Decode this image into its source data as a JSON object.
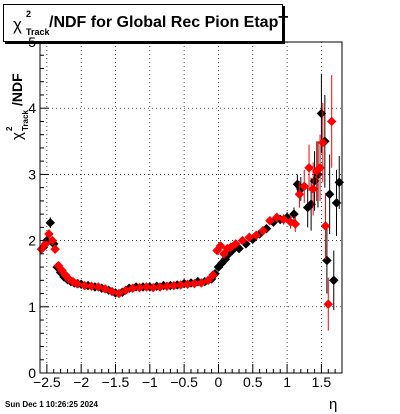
{
  "title": {
    "symbol": "χ",
    "superscript": "2",
    "subscript": "Track",
    "text": "/NDF for Global Rec Pion EtapT"
  },
  "footer": {
    "timestamp": "Sun Dec  1 10:26:25 2024"
  },
  "colors": {
    "series_black": "#000000",
    "series_red": "#ff0000",
    "grid": "#000000",
    "background": "#ffffff"
  },
  "chart_data": {
    "type": "scatter",
    "title": "χ²_Track/NDF for Global Rec Pion EtapT",
    "xlabel": "η",
    "ylabel": "χ²_Track/NDF",
    "xlim": [
      -2.6,
      1.8
    ],
    "ylim": [
      0,
      5
    ],
    "grid": true,
    "x_ticks": [
      -2.5,
      -2,
      -1.5,
      -1,
      -0.5,
      0,
      0.5,
      1,
      1.5
    ],
    "x_tick_labels": [
      "−2.5",
      "−2",
      "−1.5",
      "−1",
      "−0.5",
      "0",
      "0.5",
      "1",
      "1.5"
    ],
    "y_ticks": [
      0,
      1,
      2,
      3,
      4,
      5
    ],
    "y_tick_labels": [
      "0",
      "1",
      "2",
      "3",
      "4",
      "5"
    ],
    "series": [
      {
        "color": "#000000",
        "points": [
          {
            "x": -2.55,
            "y": 1.9,
            "err": 0.05
          },
          {
            "x": -2.5,
            "y": 2.0,
            "err": 0.06
          },
          {
            "x": -2.45,
            "y": 2.27,
            "err": 0.08
          },
          {
            "x": -2.4,
            "y": 1.95,
            "err": 0.05
          },
          {
            "x": -2.35,
            "y": 1.6,
            "err": 0.03
          },
          {
            "x": -2.3,
            "y": 1.52,
            "err": 0.03
          },
          {
            "x": -2.25,
            "y": 1.45,
            "err": 0.02
          },
          {
            "x": -2.2,
            "y": 1.41,
            "err": 0.02
          },
          {
            "x": -2.15,
            "y": 1.38,
            "err": 0.02
          },
          {
            "x": -2.1,
            "y": 1.36,
            "err": 0.02
          },
          {
            "x": -2.05,
            "y": 1.35,
            "err": 0.02
          },
          {
            "x": -2.0,
            "y": 1.34,
            "err": 0.02
          },
          {
            "x": -1.9,
            "y": 1.32,
            "err": 0.02
          },
          {
            "x": -1.8,
            "y": 1.3,
            "err": 0.02
          },
          {
            "x": -1.7,
            "y": 1.28,
            "err": 0.02
          },
          {
            "x": -1.6,
            "y": 1.25,
            "err": 0.02
          },
          {
            "x": -1.5,
            "y": 1.21,
            "err": 0.02
          },
          {
            "x": -1.4,
            "y": 1.22,
            "err": 0.02
          },
          {
            "x": -1.3,
            "y": 1.28,
            "err": 0.02
          },
          {
            "x": -1.2,
            "y": 1.3,
            "err": 0.02
          },
          {
            "x": -1.1,
            "y": 1.3,
            "err": 0.02
          },
          {
            "x": -1.0,
            "y": 1.3,
            "err": 0.02
          },
          {
            "x": -0.9,
            "y": 1.31,
            "err": 0.02
          },
          {
            "x": -0.8,
            "y": 1.32,
            "err": 0.02
          },
          {
            "x": -0.7,
            "y": 1.32,
            "err": 0.02
          },
          {
            "x": -0.6,
            "y": 1.33,
            "err": 0.02
          },
          {
            "x": -0.5,
            "y": 1.35,
            "err": 0.02
          },
          {
            "x": -0.4,
            "y": 1.36,
            "err": 0.02
          },
          {
            "x": -0.3,
            "y": 1.38,
            "err": 0.02
          },
          {
            "x": -0.2,
            "y": 1.38,
            "err": 0.03
          },
          {
            "x": -0.1,
            "y": 1.42,
            "err": 0.03
          },
          {
            "x": -0.05,
            "y": 1.5,
            "err": 0.03
          },
          {
            "x": 0.0,
            "y": 1.6,
            "err": 0.04
          },
          {
            "x": 0.05,
            "y": 1.66,
            "err": 0.04
          },
          {
            "x": 0.1,
            "y": 1.72,
            "err": 0.04
          },
          {
            "x": 0.15,
            "y": 1.8,
            "err": 0.04
          },
          {
            "x": 0.2,
            "y": 1.85,
            "err": 0.04
          },
          {
            "x": 0.3,
            "y": 1.88,
            "err": 0.04
          },
          {
            "x": 0.4,
            "y": 1.95,
            "err": 0.05
          },
          {
            "x": 0.5,
            "y": 2.02,
            "err": 0.05
          },
          {
            "x": 0.6,
            "y": 2.1,
            "err": 0.05
          },
          {
            "x": 0.7,
            "y": 2.18,
            "err": 0.06
          },
          {
            "x": 0.8,
            "y": 2.28,
            "err": 0.06
          },
          {
            "x": 0.9,
            "y": 2.32,
            "err": 0.07
          },
          {
            "x": 1.0,
            "y": 2.35,
            "err": 0.08
          },
          {
            "x": 1.1,
            "y": 2.4,
            "err": 0.1
          },
          {
            "x": 1.15,
            "y": 2.85,
            "err": 0.15
          },
          {
            "x": 1.2,
            "y": 2.78,
            "err": 0.18
          },
          {
            "x": 1.3,
            "y": 2.5,
            "err": 0.3
          },
          {
            "x": 1.35,
            "y": 2.55,
            "err": 0.4
          },
          {
            "x": 1.4,
            "y": 2.9,
            "err": 0.45
          },
          {
            "x": 1.45,
            "y": 3.0,
            "err": 0.5
          },
          {
            "x": 1.5,
            "y": 3.92,
            "err": 0.6
          },
          {
            "x": 1.55,
            "y": 3.5,
            "err": 0.7
          },
          {
            "x": 1.58,
            "y": 1.7,
            "err": 0.5
          },
          {
            "x": 1.62,
            "y": 2.7,
            "err": 0.6
          },
          {
            "x": 1.68,
            "y": 1.4,
            "err": 0.45
          },
          {
            "x": 1.72,
            "y": 2.57,
            "err": 0.5
          },
          {
            "x": 1.76,
            "y": 2.88,
            "err": 0.4
          }
        ]
      },
      {
        "color": "#ff0000",
        "points": [
          {
            "x": -2.58,
            "y": 1.87,
            "err": 0.05
          },
          {
            "x": -2.52,
            "y": 1.95,
            "err": 0.06
          },
          {
            "x": -2.47,
            "y": 2.1,
            "err": 0.07
          },
          {
            "x": -2.42,
            "y": 2.0,
            "err": 0.05
          },
          {
            "x": -2.38,
            "y": 1.87,
            "err": 0.05
          },
          {
            "x": -2.33,
            "y": 1.62,
            "err": 0.03
          },
          {
            "x": -2.28,
            "y": 1.55,
            "err": 0.03
          },
          {
            "x": -2.23,
            "y": 1.48,
            "err": 0.02
          },
          {
            "x": -2.18,
            "y": 1.42,
            "err": 0.02
          },
          {
            "x": -2.12,
            "y": 1.38,
            "err": 0.02
          },
          {
            "x": -2.06,
            "y": 1.35,
            "err": 0.02
          },
          {
            "x": -1.95,
            "y": 1.32,
            "err": 0.02
          },
          {
            "x": -1.85,
            "y": 1.31,
            "err": 0.02
          },
          {
            "x": -1.75,
            "y": 1.3,
            "err": 0.02
          },
          {
            "x": -1.65,
            "y": 1.27,
            "err": 0.02
          },
          {
            "x": -1.55,
            "y": 1.23,
            "err": 0.02
          },
          {
            "x": -1.45,
            "y": 1.2,
            "err": 0.02
          },
          {
            "x": -1.35,
            "y": 1.25,
            "err": 0.02
          },
          {
            "x": -1.25,
            "y": 1.28,
            "err": 0.02
          },
          {
            "x": -1.15,
            "y": 1.29,
            "err": 0.02
          },
          {
            "x": -1.05,
            "y": 1.3,
            "err": 0.02
          },
          {
            "x": -0.95,
            "y": 1.29,
            "err": 0.02
          },
          {
            "x": -0.85,
            "y": 1.3,
            "err": 0.02
          },
          {
            "x": -0.75,
            "y": 1.31,
            "err": 0.02
          },
          {
            "x": -0.65,
            "y": 1.32,
            "err": 0.02
          },
          {
            "x": -0.55,
            "y": 1.33,
            "err": 0.02
          },
          {
            "x": -0.45,
            "y": 1.34,
            "err": 0.02
          },
          {
            "x": -0.35,
            "y": 1.35,
            "err": 0.02
          },
          {
            "x": -0.25,
            "y": 1.36,
            "err": 0.02
          },
          {
            "x": -0.15,
            "y": 1.4,
            "err": 0.03
          },
          {
            "x": -0.08,
            "y": 1.48,
            "err": 0.03
          },
          {
            "x": -0.02,
            "y": 1.85,
            "err": 0.04
          },
          {
            "x": 0.03,
            "y": 1.92,
            "err": 0.04
          },
          {
            "x": 0.08,
            "y": 1.8,
            "err": 0.04
          },
          {
            "x": 0.13,
            "y": 1.88,
            "err": 0.04
          },
          {
            "x": 0.18,
            "y": 1.9,
            "err": 0.04
          },
          {
            "x": 0.25,
            "y": 1.95,
            "err": 0.04
          },
          {
            "x": 0.35,
            "y": 2.0,
            "err": 0.05
          },
          {
            "x": 0.45,
            "y": 2.05,
            "err": 0.05
          },
          {
            "x": 0.55,
            "y": 2.08,
            "err": 0.05
          },
          {
            "x": 0.65,
            "y": 2.15,
            "err": 0.06
          },
          {
            "x": 0.75,
            "y": 2.3,
            "err": 0.06
          },
          {
            "x": 0.85,
            "y": 2.35,
            "err": 0.07
          },
          {
            "x": 0.95,
            "y": 2.32,
            "err": 0.08
          },
          {
            "x": 1.05,
            "y": 2.28,
            "err": 0.1
          },
          {
            "x": 1.12,
            "y": 2.25,
            "err": 0.12
          },
          {
            "x": 1.18,
            "y": 2.7,
            "err": 0.2
          },
          {
            "x": 1.25,
            "y": 2.82,
            "err": 0.25
          },
          {
            "x": 1.32,
            "y": 3.1,
            "err": 0.35
          },
          {
            "x": 1.38,
            "y": 2.78,
            "err": 0.4
          },
          {
            "x": 1.43,
            "y": 3.05,
            "err": 0.45
          },
          {
            "x": 1.48,
            "y": 3.1,
            "err": 0.5
          },
          {
            "x": 1.52,
            "y": 3.48,
            "err": 0.6
          },
          {
            "x": 1.56,
            "y": 2.22,
            "err": 0.5
          },
          {
            "x": 1.6,
            "y": 1.04,
            "err": 0.4
          },
          {
            "x": 1.65,
            "y": 3.8,
            "err": 0.7
          }
        ]
      }
    ]
  }
}
